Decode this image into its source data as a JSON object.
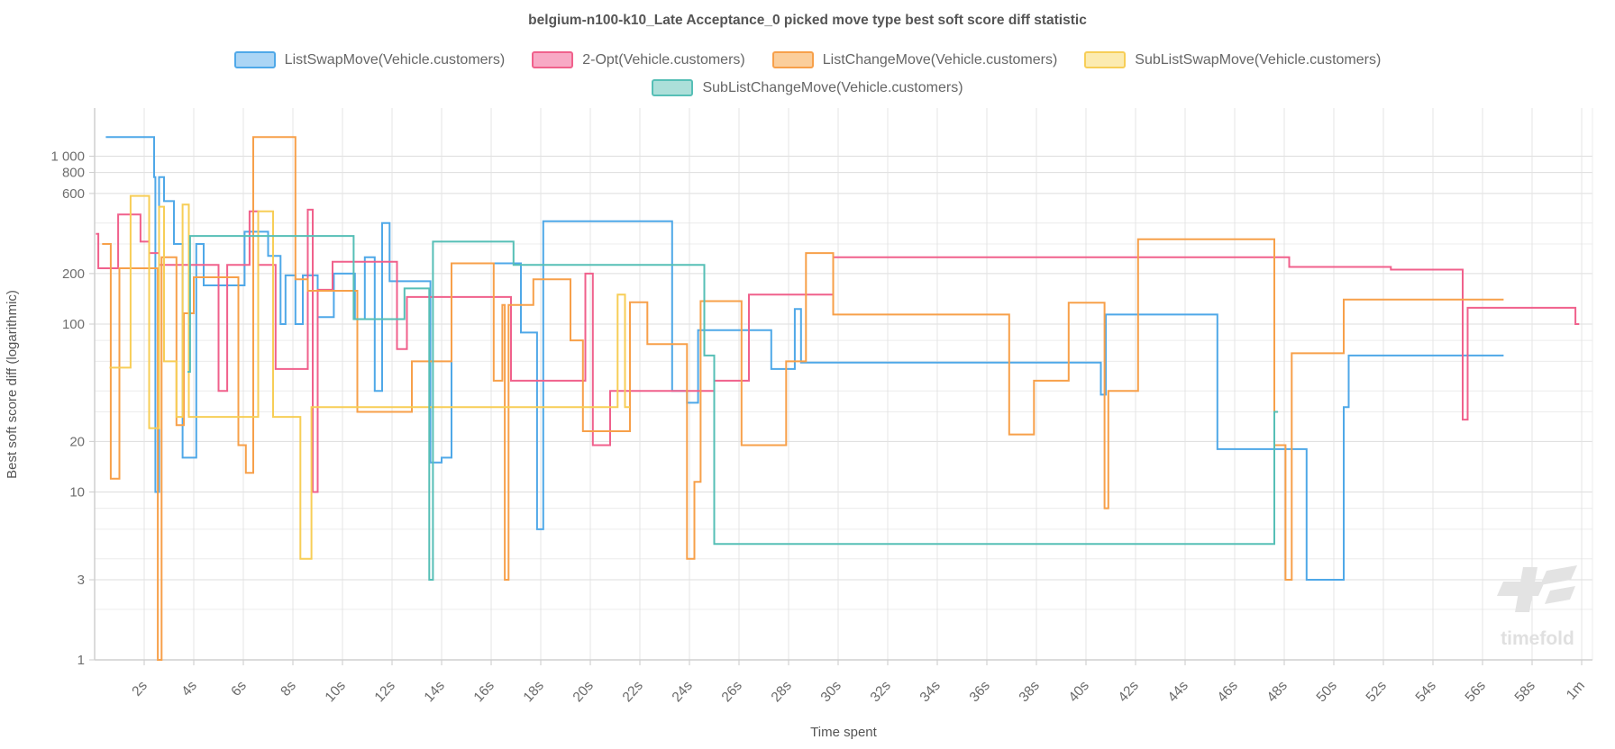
{
  "title": "belgium-n100-k10_Late Acceptance_0 picked move type best soft score diff statistic",
  "watermark": "timefold",
  "chart_data": {
    "type": "line",
    "subtype": "step-after",
    "title": "belgium-n100-k10_Late Acceptance_0 picked move type best soft score diff statistic",
    "xlabel": "Time spent",
    "ylabel": "Best soft score diff (logarithmic)",
    "x_unit": "seconds",
    "xlim_seconds": [
      0,
      60.4
    ],
    "y_scale": "log",
    "ylim": [
      1,
      1300
    ],
    "grid": true,
    "legend_position": "top",
    "x_ticks": [
      {
        "t": 2,
        "label": "2s"
      },
      {
        "t": 4,
        "label": "4s"
      },
      {
        "t": 6,
        "label": "6s"
      },
      {
        "t": 8,
        "label": "8s"
      },
      {
        "t": 10,
        "label": "10s"
      },
      {
        "t": 12,
        "label": "12s"
      },
      {
        "t": 14,
        "label": "14s"
      },
      {
        "t": 16,
        "label": "16s"
      },
      {
        "t": 18,
        "label": "18s"
      },
      {
        "t": 20,
        "label": "20s"
      },
      {
        "t": 22,
        "label": "22s"
      },
      {
        "t": 24,
        "label": "24s"
      },
      {
        "t": 26,
        "label": "26s"
      },
      {
        "t": 28,
        "label": "28s"
      },
      {
        "t": 30,
        "label": "30s"
      },
      {
        "t": 32,
        "label": "32s"
      },
      {
        "t": 34,
        "label": "34s"
      },
      {
        "t": 36,
        "label": "36s"
      },
      {
        "t": 38,
        "label": "38s"
      },
      {
        "t": 40,
        "label": "40s"
      },
      {
        "t": 42,
        "label": "42s"
      },
      {
        "t": 44,
        "label": "44s"
      },
      {
        "t": 46,
        "label": "46s"
      },
      {
        "t": 48,
        "label": "48s"
      },
      {
        "t": 50,
        "label": "50s"
      },
      {
        "t": 52,
        "label": "52s"
      },
      {
        "t": 54,
        "label": "54s"
      },
      {
        "t": 56,
        "label": "56s"
      },
      {
        "t": 58,
        "label": "58s"
      },
      {
        "t": 60,
        "label": "1m"
      }
    ],
    "y_gridlines": [
      {
        "v": 1000,
        "label": "1 000"
      },
      {
        "v": 800,
        "label": "800"
      },
      {
        "v": 600,
        "label": "600"
      },
      {
        "v": 400
      },
      {
        "v": 300
      },
      {
        "v": 200,
        "label": "200"
      },
      {
        "v": 100,
        "label": "100"
      },
      {
        "v": 80
      },
      {
        "v": 60
      },
      {
        "v": 40
      },
      {
        "v": 30
      },
      {
        "v": 20,
        "label": "20"
      },
      {
        "v": 10,
        "label": "10"
      },
      {
        "v": 8
      },
      {
        "v": 6
      },
      {
        "v": 4
      },
      {
        "v": 3,
        "label": "3"
      },
      {
        "v": 2
      },
      {
        "v": 1,
        "label": "1"
      }
    ],
    "series": [
      {
        "name": "ListSwapMove(Vehicle.customers)",
        "color": "#4FA8E8",
        "fill": "#ABD5F5",
        "points": [
          [
            0.45,
            1300
          ],
          [
            2.4,
            750
          ],
          [
            2.45,
            10
          ],
          [
            2.6,
            750
          ],
          [
            2.8,
            540
          ],
          [
            3.2,
            300
          ],
          [
            3.55,
            16
          ],
          [
            4.1,
            300
          ],
          [
            4.4,
            170
          ],
          [
            6.05,
            355
          ],
          [
            7.0,
            255
          ],
          [
            7.5,
            100
          ],
          [
            7.7,
            195
          ],
          [
            8.1,
            100
          ],
          [
            8.4,
            195
          ],
          [
            9.0,
            110
          ],
          [
            9.65,
            200
          ],
          [
            10.5,
            107
          ],
          [
            10.9,
            250
          ],
          [
            11.3,
            40
          ],
          [
            11.6,
            400
          ],
          [
            11.9,
            180
          ],
          [
            13.55,
            15
          ],
          [
            14.0,
            16
          ],
          [
            14.4,
            230
          ],
          [
            17.2,
            89
          ],
          [
            17.85,
            6
          ],
          [
            18.1,
            410
          ],
          [
            23.3,
            40
          ],
          [
            23.9,
            34
          ],
          [
            24.35,
            92
          ],
          [
            27.3,
            54
          ],
          [
            28.25,
            123
          ],
          [
            28.5,
            59
          ],
          [
            40.6,
            38
          ],
          [
            40.8,
            114
          ],
          [
            45.3,
            18
          ],
          [
            48.9,
            3
          ],
          [
            50.4,
            32
          ],
          [
            50.6,
            65
          ],
          [
            56.85,
            65
          ]
        ]
      },
      {
        "name": "2-Opt(Vehicle.customers)",
        "color": "#F0618C",
        "fill": "#F8A9C5",
        "points": [
          [
            0.05,
            345
          ],
          [
            0.15,
            215
          ],
          [
            0.95,
            450
          ],
          [
            1.85,
            310
          ],
          [
            2.2,
            265
          ],
          [
            2.6,
            225
          ],
          [
            5.0,
            40
          ],
          [
            5.35,
            225
          ],
          [
            6.25,
            470
          ],
          [
            6.6,
            225
          ],
          [
            7.3,
            54
          ],
          [
            8.6,
            480
          ],
          [
            8.8,
            10
          ],
          [
            9.0,
            160
          ],
          [
            9.6,
            235
          ],
          [
            12.2,
            71
          ],
          [
            12.6,
            145
          ],
          [
            16.8,
            46
          ],
          [
            19.8,
            200
          ],
          [
            20.1,
            19
          ],
          [
            20.8,
            40
          ],
          [
            25.0,
            46
          ],
          [
            26.4,
            150
          ],
          [
            29.8,
            250
          ],
          [
            48.2,
            219
          ],
          [
            52.3,
            211
          ],
          [
            55.2,
            27
          ],
          [
            55.4,
            125
          ],
          [
            59.75,
            100
          ],
          [
            59.9,
            100
          ]
        ]
      },
      {
        "name": "ListChangeMove(Vehicle.customers)",
        "color": "#F7A04A",
        "fill": "#FBCE9B",
        "points": [
          [
            0.3,
            300
          ],
          [
            0.65,
            12
          ],
          [
            1.0,
            215
          ],
          [
            2.55,
            1
          ],
          [
            2.7,
            250
          ],
          [
            3.3,
            25
          ],
          [
            3.6,
            116
          ],
          [
            4.0,
            190
          ],
          [
            5.8,
            19
          ],
          [
            6.1,
            13
          ],
          [
            6.4,
            1300
          ],
          [
            8.1,
            185
          ],
          [
            8.6,
            158
          ],
          [
            10.6,
            30
          ],
          [
            12.8,
            60
          ],
          [
            14.4,
            230
          ],
          [
            16.1,
            46
          ],
          [
            16.45,
            130
          ],
          [
            16.55,
            3
          ],
          [
            16.7,
            130
          ],
          [
            17.7,
            185
          ],
          [
            19.2,
            80
          ],
          [
            19.7,
            23
          ],
          [
            21.6,
            135
          ],
          [
            22.3,
            76
          ],
          [
            23.9,
            4
          ],
          [
            24.2,
            11.5
          ],
          [
            24.45,
            137
          ],
          [
            26.1,
            19
          ],
          [
            27.9,
            60
          ],
          [
            28.7,
            265
          ],
          [
            29.8,
            114
          ],
          [
            36.9,
            22
          ],
          [
            37.9,
            46
          ],
          [
            39.3,
            134
          ],
          [
            40.75,
            8
          ],
          [
            40.9,
            40
          ],
          [
            42.1,
            320
          ],
          [
            47.6,
            19
          ],
          [
            48.05,
            3
          ],
          [
            48.3,
            67
          ],
          [
            50.4,
            140
          ],
          [
            56.85,
            140
          ]
        ]
      },
      {
        "name": "SubListSwapMove(Vehicle.customers)",
        "color": "#F7CE57",
        "fill": "#FCEBB0",
        "points": [
          [
            0.6,
            55
          ],
          [
            1.45,
            580
          ],
          [
            2.2,
            24
          ],
          [
            2.6,
            500
          ],
          [
            2.8,
            60
          ],
          [
            3.3,
            28
          ],
          [
            3.55,
            515
          ],
          [
            3.8,
            28
          ],
          [
            6.6,
            470
          ],
          [
            7.2,
            28
          ],
          [
            8.3,
            4
          ],
          [
            8.75,
            32
          ],
          [
            21.1,
            150
          ],
          [
            21.4,
            32
          ],
          [
            21.6,
            32
          ]
        ]
      },
      {
        "name": "SubListChangeMove(Vehicle.customers)",
        "color": "#56BFB6",
        "fill": "#ACDFD9",
        "points": [
          [
            3.75,
            52
          ],
          [
            3.85,
            335
          ],
          [
            10.45,
            107
          ],
          [
            12.5,
            163
          ],
          [
            13.5,
            3
          ],
          [
            13.65,
            310
          ],
          [
            16.9,
            225
          ],
          [
            24.6,
            65
          ],
          [
            25.0,
            4.9
          ],
          [
            47.6,
            30
          ],
          [
            47.75,
            30
          ]
        ]
      }
    ]
  }
}
